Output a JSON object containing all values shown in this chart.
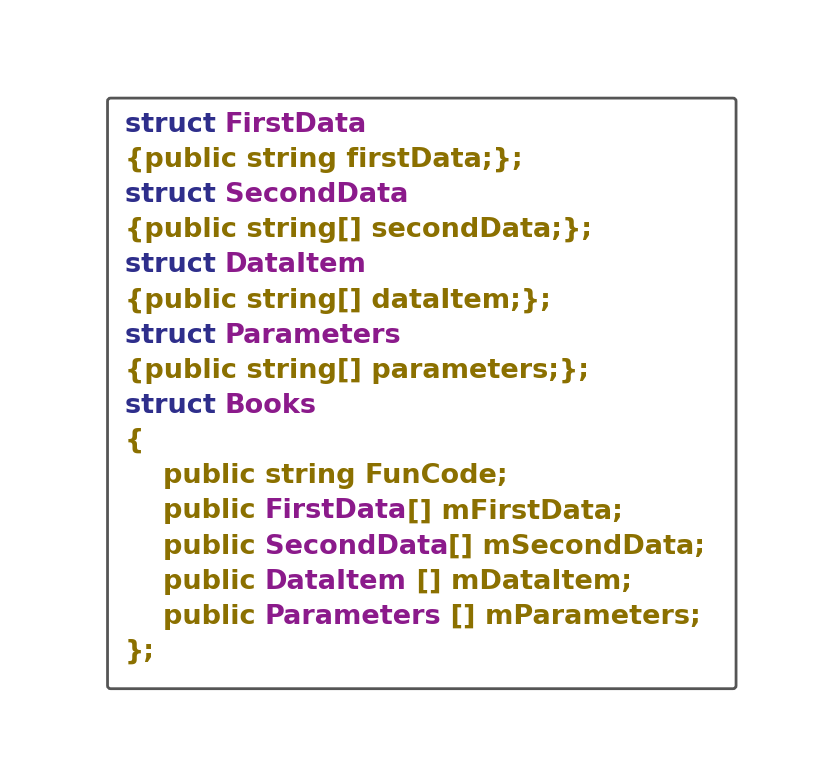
{
  "bg_color": "#ffffff",
  "border_color": "#555555",
  "font_family": "Courier New",
  "font_size": 19.5,
  "figsize": [
    8.23,
    7.79
  ],
  "dpi": 100,
  "lines": [
    [
      {
        "text": "struct ",
        "color": "#2e2e8b"
      },
      {
        "text": "FirstData",
        "color": "#8b1a8b"
      }
    ],
    [
      {
        "text": "{public string firstData;};",
        "color": "#8b7000"
      }
    ],
    [
      {
        "text": "struct ",
        "color": "#2e2e8b"
      },
      {
        "text": "SecondData",
        "color": "#8b1a8b"
      }
    ],
    [
      {
        "text": "{public string[] secondData;};",
        "color": "#8b7000"
      }
    ],
    [
      {
        "text": "struct ",
        "color": "#2e2e8b"
      },
      {
        "text": "DataItem",
        "color": "#8b1a8b"
      }
    ],
    [
      {
        "text": "{public string[] dataItem;};",
        "color": "#8b7000"
      }
    ],
    [
      {
        "text": "struct ",
        "color": "#2e2e8b"
      },
      {
        "text": "Parameters",
        "color": "#8b1a8b"
      }
    ],
    [
      {
        "text": "{public string[] parameters;};",
        "color": "#8b7000"
      }
    ],
    [
      {
        "text": "struct ",
        "color": "#2e2e8b"
      },
      {
        "text": "Books",
        "color": "#8b1a8b"
      }
    ],
    [
      {
        "text": "{",
        "color": "#8b7000"
      }
    ],
    [
      {
        "text": "    public string FunCode;",
        "color": "#8b7000"
      }
    ],
    [
      {
        "text": "    public ",
        "color": "#8b7000"
      },
      {
        "text": "FirstData",
        "color": "#8b1a8b"
      },
      {
        "text": "[] mFirstData;",
        "color": "#8b7000"
      }
    ],
    [
      {
        "text": "    public ",
        "color": "#8b7000"
      },
      {
        "text": "SecondData",
        "color": "#8b1a8b"
      },
      {
        "text": "[] mSecondData;",
        "color": "#8b7000"
      }
    ],
    [
      {
        "text": "    public ",
        "color": "#8b7000"
      },
      {
        "text": "DataItem",
        "color": "#8b1a8b"
      },
      {
        "text": " [] mDataItem;",
        "color": "#8b7000"
      }
    ],
    [
      {
        "text": "    public ",
        "color": "#8b7000"
      },
      {
        "text": "Parameters",
        "color": "#8b1a8b"
      },
      {
        "text": " [] mParameters;",
        "color": "#8b7000"
      }
    ],
    [
      {
        "text": "};",
        "color": "#8b7000"
      }
    ]
  ]
}
